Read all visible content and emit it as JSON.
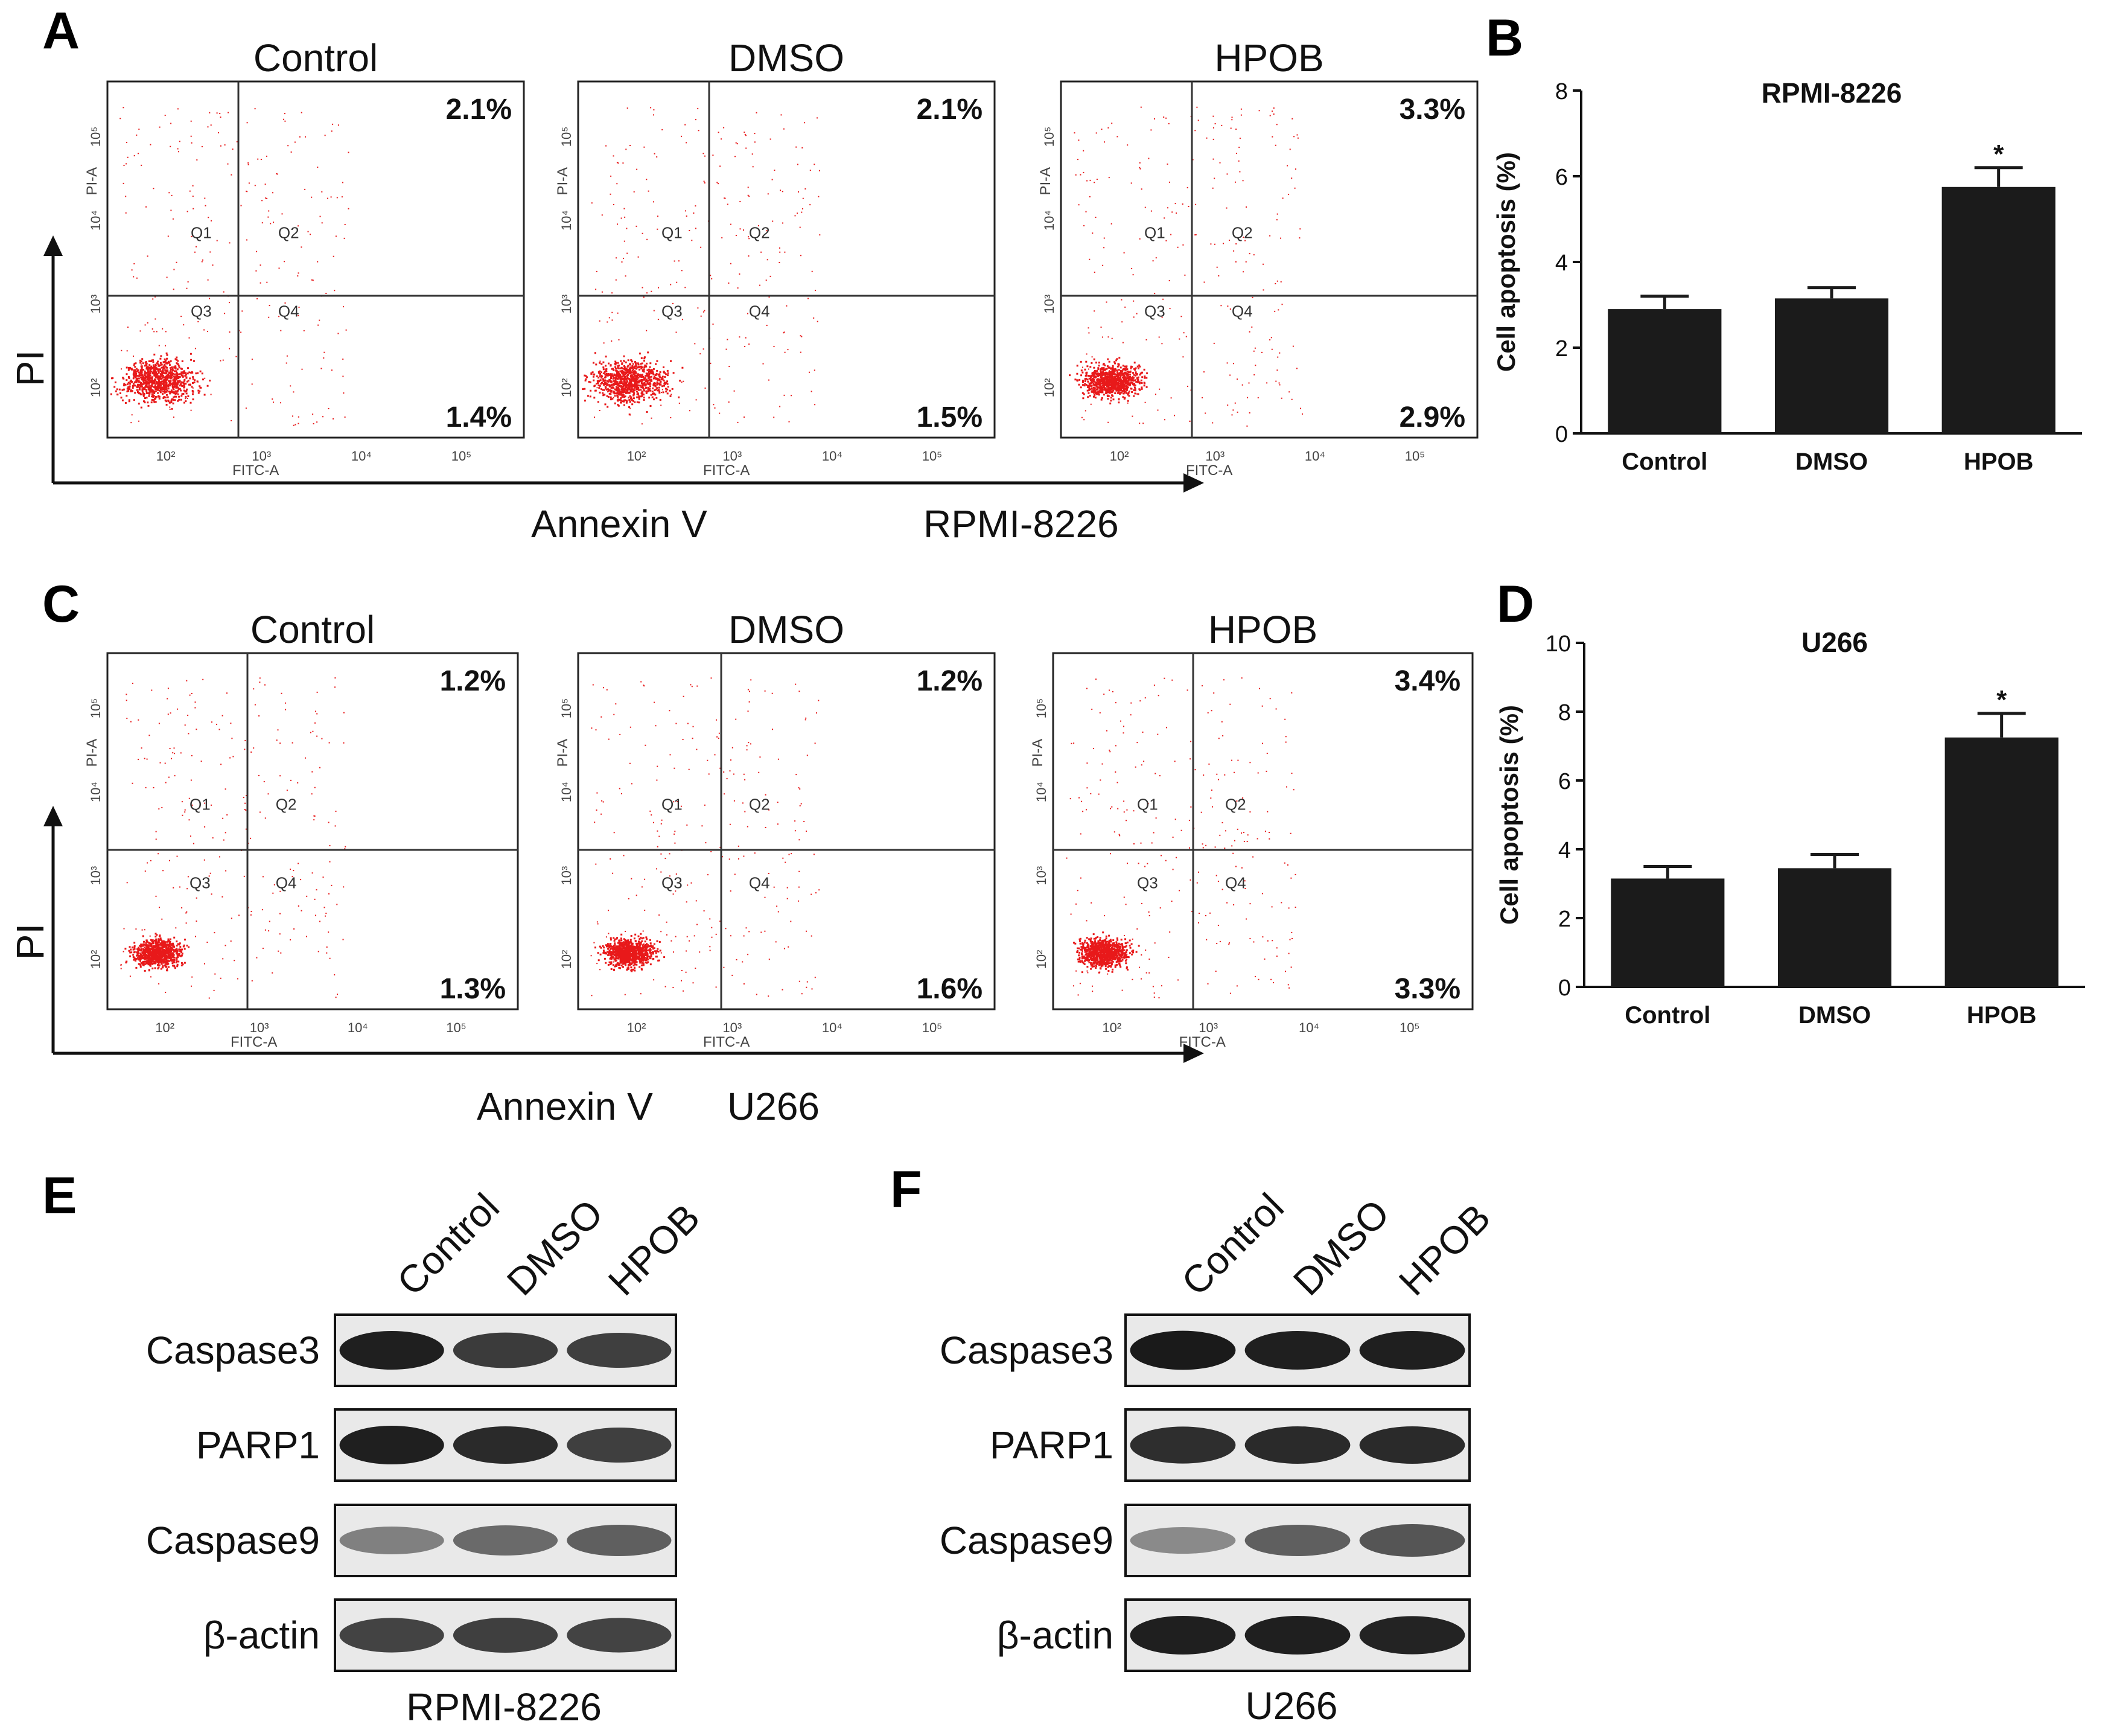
{
  "panel_letters": {
    "a": "A",
    "b": "B",
    "c": "C",
    "d": "D",
    "e": "E",
    "f": "F"
  },
  "colors": {
    "dot": "#e8191a",
    "bar": "#1b1b1b",
    "ink": "#111111",
    "band": "#1a1a1a"
  },
  "flow": {
    "q_labels": [
      "Q1",
      "Q2",
      "Q3",
      "Q4"
    ],
    "y_axis_name": "PI-A",
    "x_axis_name": "FITC-A",
    "tick_labels": [
      "10²",
      "10³",
      "10⁴",
      "10⁵"
    ],
    "rows": [
      {
        "y_label": "PI",
        "x_label": "Annexin  V",
        "cell_line": "RPMI-8226",
        "plots": [
          {
            "title": "Control",
            "ur": "2.1%",
            "lr": "1.4%",
            "spread": 0.85
          },
          {
            "title": "DMSO",
            "ur": "2.1%",
            "lr": "1.5%",
            "spread": 0.85
          },
          {
            "title": "HPOB",
            "ur": "3.3%",
            "lr": "2.9%",
            "spread": 0.65
          }
        ]
      },
      {
        "y_label": "PI",
        "x_label": "Annexin  V",
        "cell_line": "U266",
        "plots": [
          {
            "title": "Control",
            "ur": "1.2%",
            "lr": "1.3%",
            "spread": 0.55
          },
          {
            "title": "DMSO",
            "ur": "1.2%",
            "lr": "1.6%",
            "spread": 0.55
          },
          {
            "title": "HPOB",
            "ur": "3.4%",
            "lr": "3.3%",
            "spread": 0.55
          }
        ]
      }
    ]
  },
  "chart_data": [
    {
      "type": "bar",
      "title": "RPMI-8226",
      "ylabel": "Cell apoptosis (%)",
      "categories": [
        "Control",
        "DMSO",
        "HPOB"
      ],
      "values": [
        2.9,
        3.15,
        5.75
      ],
      "errors": [
        0.3,
        0.25,
        0.45
      ],
      "ylim": [
        0,
        8
      ],
      "yticks": [
        0,
        2,
        4,
        6,
        8
      ],
      "annotations": [
        "",
        "",
        "*"
      ]
    },
    {
      "type": "bar",
      "title": "U266",
      "ylabel": "Cell apoptosis (%)",
      "categories": [
        "Control",
        "DMSO",
        "HPOB"
      ],
      "values": [
        3.15,
        3.45,
        7.25
      ],
      "errors": [
        0.35,
        0.4,
        0.7
      ],
      "ylim": [
        0,
        10
      ],
      "yticks": [
        0,
        2,
        4,
        6,
        8,
        10
      ],
      "annotations": [
        "",
        "",
        "*"
      ]
    }
  ],
  "blots": [
    {
      "cell_line": "RPMI-8226",
      "lanes": [
        "Control",
        "DMSO",
        "HPOB"
      ],
      "rows": [
        {
          "label": "Caspase3",
          "intensity": [
            0.95,
            0.82,
            0.8
          ]
        },
        {
          "label": "PARP1",
          "intensity": [
            0.95,
            0.9,
            0.8
          ]
        },
        {
          "label": "Caspase9",
          "intensity": [
            0.5,
            0.6,
            0.65
          ]
        },
        {
          "label": "β-actin",
          "intensity": [
            0.78,
            0.8,
            0.78
          ]
        }
      ]
    },
    {
      "cell_line": "U266",
      "lanes": [
        "Control",
        "DMSO",
        "HPOB"
      ],
      "rows": [
        {
          "label": "Caspase3",
          "intensity": [
            0.97,
            0.95,
            0.95
          ]
        },
        {
          "label": "PARP1",
          "intensity": [
            0.88,
            0.9,
            0.9
          ]
        },
        {
          "label": "Caspase9",
          "intensity": [
            0.45,
            0.65,
            0.7
          ]
        },
        {
          "label": "β-actin",
          "intensity": [
            0.95,
            0.95,
            0.93
          ]
        }
      ]
    }
  ]
}
